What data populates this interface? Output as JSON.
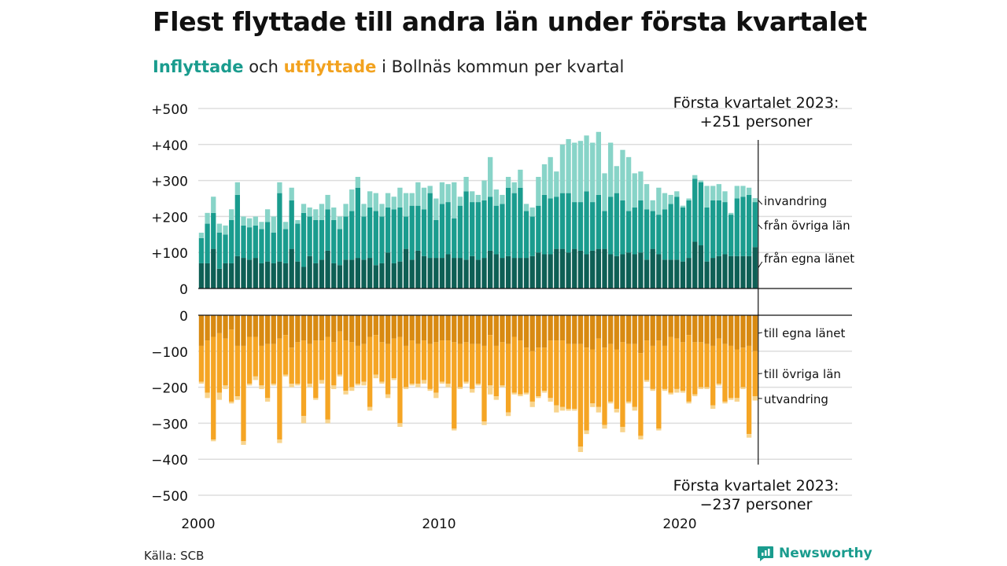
{
  "title": "Flest flyttade till andra län under första kvartalet",
  "subtitle": {
    "inflow_word": "Inflyttade",
    "connector": " och ",
    "outflow_word": "utflyttade",
    "rest": " i Bollnäs kommun per kvartal"
  },
  "source": "Källa: SCB",
  "brand": {
    "name": "Newsworthy",
    "icon": "newsworthy-chart-bubble-icon"
  },
  "colors": {
    "in_egna": "#0e5f55",
    "in_ovriga": "#1a9c8e",
    "in_invandring": "#88d4c8",
    "out_egna": "#d88a12",
    "out_ovriga": "#f5a524",
    "out_utvandring": "#f8d48d",
    "grid": "#dddddd",
    "text": "#111111"
  },
  "chart_data": {
    "type": "bar",
    "stacked": true,
    "x_ticks": [
      "2000",
      "2010",
      "2020"
    ],
    "top_panel": {
      "yticks": [
        "+500",
        "+400",
        "+300",
        "+200",
        "+100",
        "0"
      ],
      "ylim": [
        0,
        500
      ],
      "series_labels": [
        "invandring",
        "från övriga län",
        "från egna länet"
      ],
      "annotation_lines": [
        "Första kvartalet 2023:",
        "+251 personer"
      ]
    },
    "bottom_panel": {
      "yticks": [
        "0",
        "−100",
        "−200",
        "−300",
        "−400",
        "−500"
      ],
      "ylim": [
        -500,
        0
      ],
      "series_labels": [
        "till egna länet",
        "till övriga län",
        "utvandring"
      ],
      "annotation_lines": [
        "Första kvartalet 2023:",
        "−237 personer"
      ]
    },
    "first_quarter": "2000 Q1",
    "last_quarter": "2023 Q1",
    "quarters": 93,
    "inflow_egna": [
      70,
      70,
      110,
      55,
      70,
      70,
      90,
      85,
      80,
      85,
      70,
      75,
      70,
      75,
      70,
      110,
      75,
      60,
      90,
      70,
      80,
      105,
      70,
      65,
      80,
      80,
      85,
      80,
      85,
      65,
      70,
      100,
      70,
      75,
      110,
      80,
      105,
      90,
      85,
      85,
      85,
      95,
      85,
      85,
      80,
      90,
      80,
      85,
      105,
      95,
      85,
      90,
      85,
      85,
      85,
      90,
      100,
      95,
      95,
      110,
      110,
      100,
      110,
      105,
      95,
      105,
      110,
      110,
      95,
      90,
      95,
      100,
      95,
      100,
      80,
      110,
      95,
      80,
      80,
      80,
      75,
      85,
      130,
      120,
      75,
      85,
      90,
      95,
      90,
      90,
      90,
      90,
      115
    ],
    "inflow_ovriga": [
      70,
      110,
      100,
      100,
      80,
      120,
      170,
      90,
      90,
      90,
      95,
      110,
      85,
      190,
      95,
      135,
      105,
      150,
      110,
      120,
      110,
      115,
      120,
      100,
      120,
      135,
      195,
      120,
      140,
      150,
      130,
      125,
      150,
      150,
      90,
      150,
      125,
      130,
      180,
      105,
      150,
      145,
      110,
      145,
      190,
      150,
      160,
      160,
      150,
      135,
      150,
      190,
      180,
      195,
      130,
      110,
      130,
      165,
      155,
      145,
      155,
      165,
      130,
      135,
      175,
      135,
      150,
      105,
      160,
      175,
      150,
      115,
      130,
      145,
      140,
      105,
      110,
      140,
      155,
      175,
      150,
      160,
      175,
      175,
      150,
      160,
      155,
      145,
      115,
      160,
      165,
      170,
      125
    ],
    "inflow_invandring": [
      15,
      30,
      45,
      25,
      25,
      30,
      35,
      25,
      25,
      25,
      20,
      35,
      45,
      30,
      20,
      35,
      10,
      25,
      25,
      30,
      45,
      40,
      35,
      35,
      35,
      60,
      30,
      35,
      45,
      50,
      35,
      40,
      35,
      55,
      65,
      35,
      65,
      60,
      20,
      60,
      60,
      50,
      100,
      25,
      40,
      30,
      20,
      55,
      110,
      45,
      25,
      30,
      30,
      50,
      20,
      25,
      80,
      85,
      115,
      70,
      135,
      150,
      165,
      170,
      155,
      165,
      175,
      105,
      150,
      75,
      140,
      150,
      95,
      80,
      70,
      30,
      75,
      45,
      25,
      15,
      5,
      5,
      10,
      5,
      60,
      40,
      45,
      30,
      5,
      35,
      30,
      20,
      11
    ],
    "outflow_egna": [
      85,
      70,
      60,
      50,
      65,
      40,
      85,
      85,
      60,
      60,
      85,
      80,
      80,
      65,
      55,
      90,
      75,
      70,
      80,
      70,
      70,
      60,
      75,
      45,
      70,
      75,
      85,
      80,
      60,
      55,
      75,
      80,
      65,
      60,
      85,
      70,
      80,
      70,
      80,
      75,
      70,
      70,
      75,
      80,
      75,
      80,
      80,
      85,
      55,
      85,
      75,
      80,
      60,
      70,
      90,
      100,
      90,
      90,
      70,
      70,
      70,
      80,
      80,
      80,
      90,
      95,
      65,
      90,
      80,
      95,
      75,
      80,
      80,
      105,
      70,
      85,
      70,
      85,
      60,
      65,
      75,
      55,
      75,
      75,
      80,
      85,
      65,
      80,
      85,
      95,
      90,
      85,
      100
    ],
    "outflow_ovriga": [
      100,
      145,
      285,
      165,
      130,
      200,
      140,
      265,
      130,
      110,
      110,
      150,
      110,
      280,
      110,
      100,
      115,
      210,
      110,
      160,
      110,
      230,
      120,
      120,
      140,
      125,
      105,
      105,
      195,
      110,
      110,
      140,
      110,
      240,
      115,
      120,
      110,
      110,
      125,
      140,
      115,
      120,
      240,
      120,
      110,
      125,
      110,
      210,
      140,
      140,
      120,
      190,
      155,
      150,
      125,
      140,
      135,
      120,
      160,
      180,
      185,
      180,
      180,
      285,
      230,
      150,
      190,
      215,
      160,
      165,
      235,
      160,
      175,
      230,
      110,
      120,
      245,
      120,
      155,
      140,
      135,
      185,
      145,
      125,
      120,
      165,
      125,
      160,
      145,
      135,
      110,
      245,
      125
    ],
    "outflow_utvandring": [
      5,
      15,
      5,
      20,
      10,
      5,
      10,
      10,
      5,
      10,
      10,
      10,
      5,
      10,
      5,
      10,
      5,
      20,
      10,
      5,
      10,
      10,
      10,
      5,
      10,
      10,
      5,
      10,
      10,
      10,
      5,
      10,
      5,
      10,
      5,
      5,
      10,
      10,
      5,
      15,
      5,
      10,
      5,
      5,
      5,
      10,
      5,
      10,
      25,
      10,
      5,
      10,
      5,
      5,
      5,
      15,
      5,
      5,
      10,
      20,
      10,
      5,
      5,
      15,
      10,
      10,
      15,
      10,
      5,
      10,
      15,
      5,
      10,
      10,
      5,
      5,
      5,
      5,
      5,
      10,
      5,
      5,
      5,
      5,
      5,
      10,
      5,
      5,
      5,
      10,
      5,
      10,
      12
    ],
    "totals_2023_q1": {
      "inflow": 251,
      "outflow": -237
    }
  }
}
